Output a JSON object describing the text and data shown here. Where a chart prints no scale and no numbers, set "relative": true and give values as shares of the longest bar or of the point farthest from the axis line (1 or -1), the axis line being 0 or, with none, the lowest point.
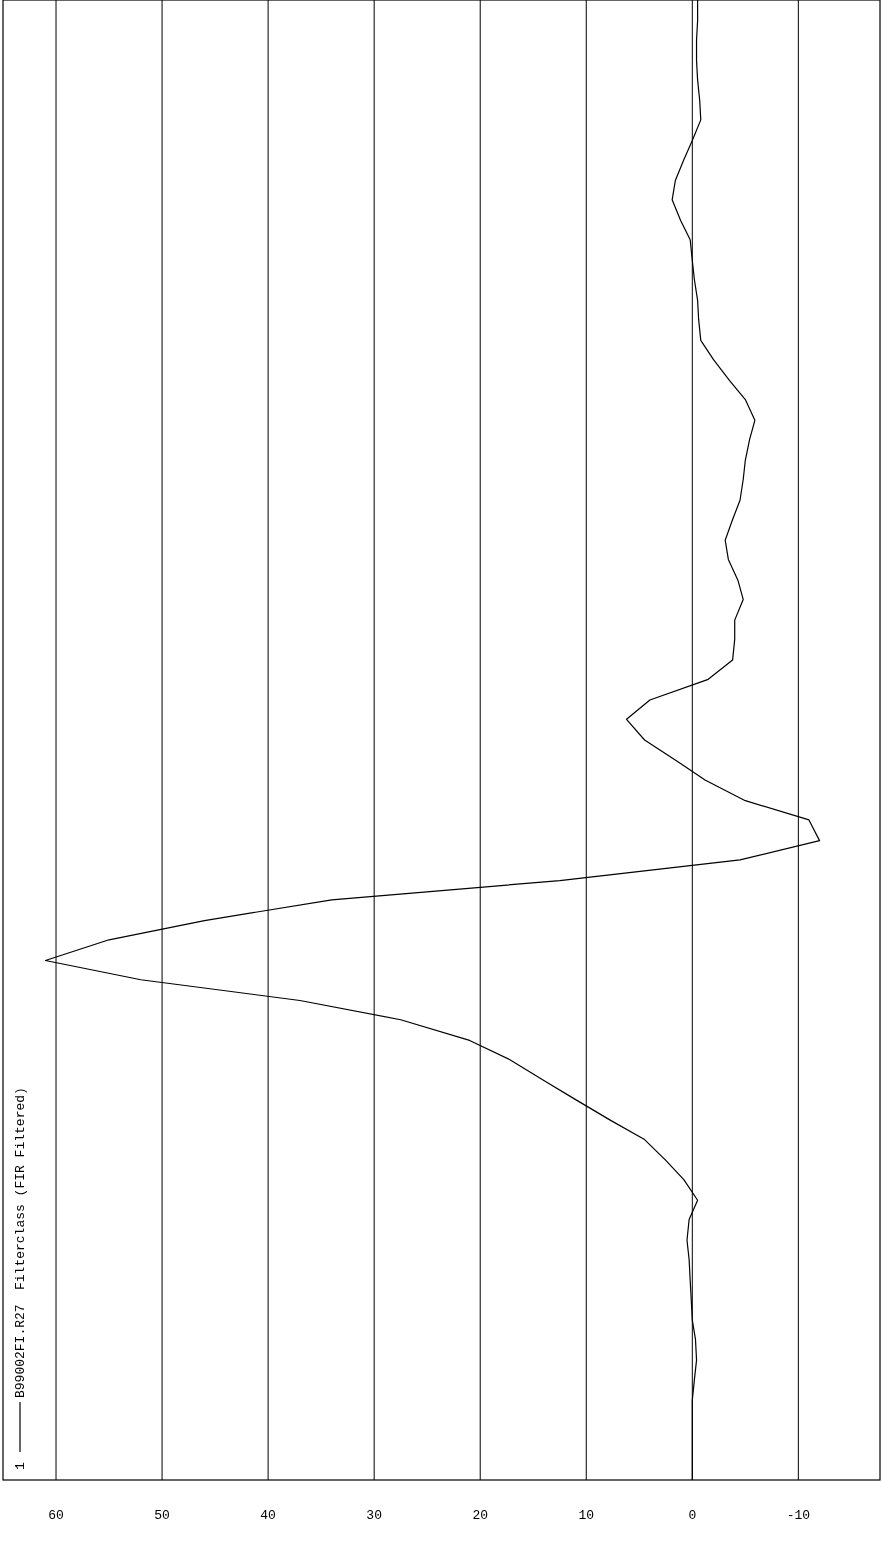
{
  "chart_data": {
    "type": "line",
    "title": "Filterclass (FIR Filtered)",
    "annotations": [
      "1"
    ],
    "relative": true,
    "series": [
      {
        "name": "B99002FI.R27",
        "color": "#000000",
        "x": [
          0,
          0,
          0,
          0,
          0,
          -0.2,
          -0.4,
          -0.3,
          0,
          0.1,
          0.2,
          0.3,
          0.5,
          0.3,
          -0.5,
          0.8,
          2.5,
          4.5,
          7.7,
          11,
          14,
          17.2,
          21,
          27.5,
          37,
          52,
          61,
          55,
          46,
          34,
          12.5,
          -4.5,
          -12,
          -11,
          -5,
          -1.2,
          1.5,
          4.5,
          6.2,
          4,
          -1.5,
          -3.8,
          -4,
          -4,
          -4.8,
          -4.3,
          -3.4,
          -3.1,
          -3.8,
          -4.5,
          -4.8,
          -5,
          -5.4,
          -5.9,
          -5,
          -3.5,
          -2,
          -0.8,
          -0.6,
          -0.5,
          -0.2,
          0,
          0.2,
          1.1,
          1.9,
          1.6,
          0.8,
          0,
          -0.8,
          -0.7,
          -0.5,
          -0.4,
          -0.4,
          -0.5,
          -0.5
        ],
        "values": [
          0,
          0.014,
          0.027,
          0.041,
          0.054,
          0.068,
          0.081,
          0.095,
          0.108,
          0.122,
          0.135,
          0.149,
          0.162,
          0.176,
          0.189,
          0.203,
          0.216,
          0.23,
          0.243,
          0.257,
          0.27,
          0.284,
          0.297,
          0.311,
          0.324,
          0.338,
          0.351,
          0.365,
          0.378,
          0.392,
          0.405,
          0.419,
          0.432,
          0.446,
          0.459,
          0.473,
          0.486,
          0.5,
          0.514,
          0.527,
          0.541,
          0.554,
          0.568,
          0.581,
          0.595,
          0.608,
          0.622,
          0.635,
          0.649,
          0.662,
          0.676,
          0.689,
          0.703,
          0.716,
          0.73,
          0.743,
          0.757,
          0.77,
          0.784,
          0.797,
          0.811,
          0.824,
          0.838,
          0.851,
          0.865,
          0.878,
          0.892,
          0.905,
          0.919,
          0.932,
          0.946,
          0.959,
          0.973,
          0.986,
          1
        ]
      }
    ],
    "xlim": [
      65,
      -17.7
    ],
    "xticks": [
      60,
      50,
      40,
      30,
      20,
      10,
      0,
      -10
    ],
    "grid": "x",
    "legend": "bottom left",
    "marker": "none",
    "line_style": "solid"
  }
}
